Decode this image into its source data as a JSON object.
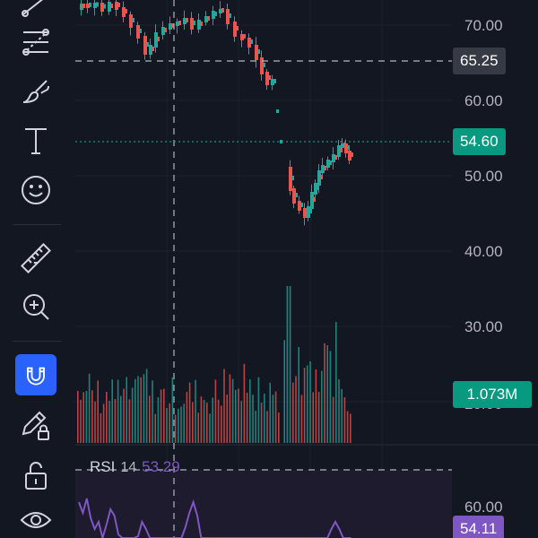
{
  "toolbar": {
    "tools": [
      {
        "name": "line-tool",
        "icon": "trend-line-icon"
      },
      {
        "name": "fib-tool",
        "icon": "fib-retracement-icon"
      },
      {
        "name": "brush-tool",
        "icon": "brush-icon"
      },
      {
        "name": "text-tool",
        "icon": "text-icon"
      },
      {
        "name": "emoji-tool",
        "icon": "smiley-icon"
      },
      {
        "name": "ruler-tool",
        "icon": "ruler-icon"
      },
      {
        "name": "zoom-tool",
        "icon": "zoom-in-icon"
      },
      {
        "name": "magnet-tool",
        "icon": "magnet-icon",
        "active": true
      },
      {
        "name": "lock-drawings-tool",
        "icon": "pencil-lock-icon"
      },
      {
        "name": "lock-tool",
        "icon": "unlock-icon"
      },
      {
        "name": "hide-tool",
        "icon": "eye-icon"
      }
    ]
  },
  "price_axis": {
    "labels": [
      "70.00",
      "60.00",
      "50.00",
      "40.00",
      "30.00",
      "20.00"
    ],
    "crosshair_price": "65.25",
    "last_price": "54.60",
    "volume": "1.073M"
  },
  "rsi": {
    "name": "RSI",
    "length": "14",
    "value": "53.29",
    "axis_label": "60.00",
    "last_value": "54.11"
  },
  "colors": {
    "background": "#131722",
    "up": "#26a69a",
    "down": "#ef5350",
    "tag_last": "#089981",
    "tag_crosshair": "#363a45",
    "rsi_line": "#7e57c2",
    "rsi_band": "#1e1b2e",
    "grid": "#1e222d",
    "magnet_active": "#2962ff"
  }
}
